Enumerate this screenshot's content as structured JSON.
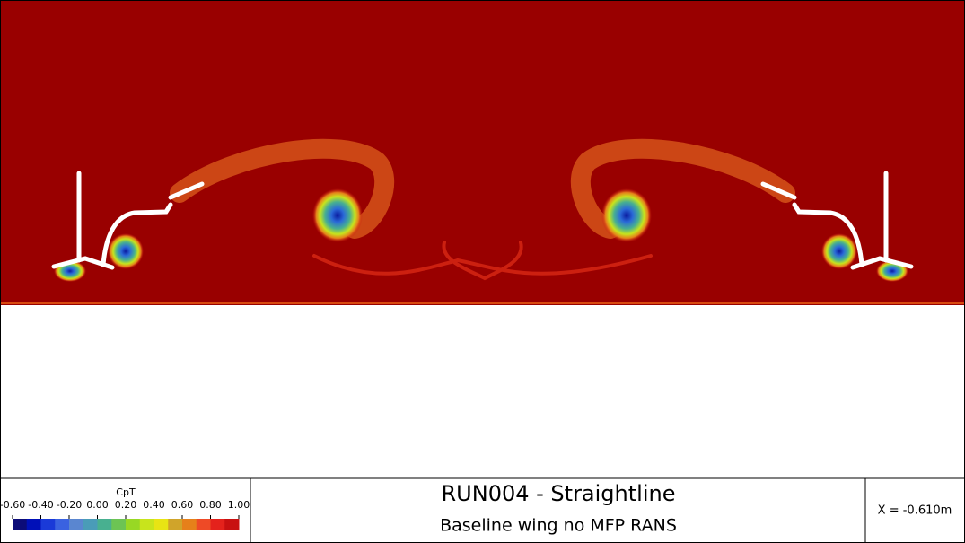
{
  "colorbar": {
    "title": "CpT",
    "range": [
      -0.6,
      1.0
    ],
    "colors": [
      "#0c0c78",
      "#0010b8",
      "#1a3ad8",
      "#3a62e0",
      "#5a86d0",
      "#4a9cb8",
      "#48b090",
      "#6cc454",
      "#98d824",
      "#c8e41c",
      "#e8e414",
      "#d0a42a",
      "#e6801a",
      "#ee4a26",
      "#e4221c",
      "#c81010"
    ],
    "ticks": [
      {
        "value": -0.6,
        "label": "-0.60"
      },
      {
        "value": -0.4,
        "label": "-0.40"
      },
      {
        "value": -0.2,
        "label": "-0.20"
      },
      {
        "value": 0,
        "label": "0.00"
      },
      {
        "value": 0.2,
        "label": "0.20"
      },
      {
        "value": 0.4,
        "label": "0.40"
      },
      {
        "value": 0.6,
        "label": "0.60"
      },
      {
        "value": 0.8,
        "label": "0.80"
      },
      {
        "value": 1.0,
        "label": "1.00"
      }
    ]
  },
  "header": {
    "title": "RUN004 - Straightline",
    "subtitle": "Baseline wing no MFP RANS"
  },
  "position": "X = -0.610m"
}
